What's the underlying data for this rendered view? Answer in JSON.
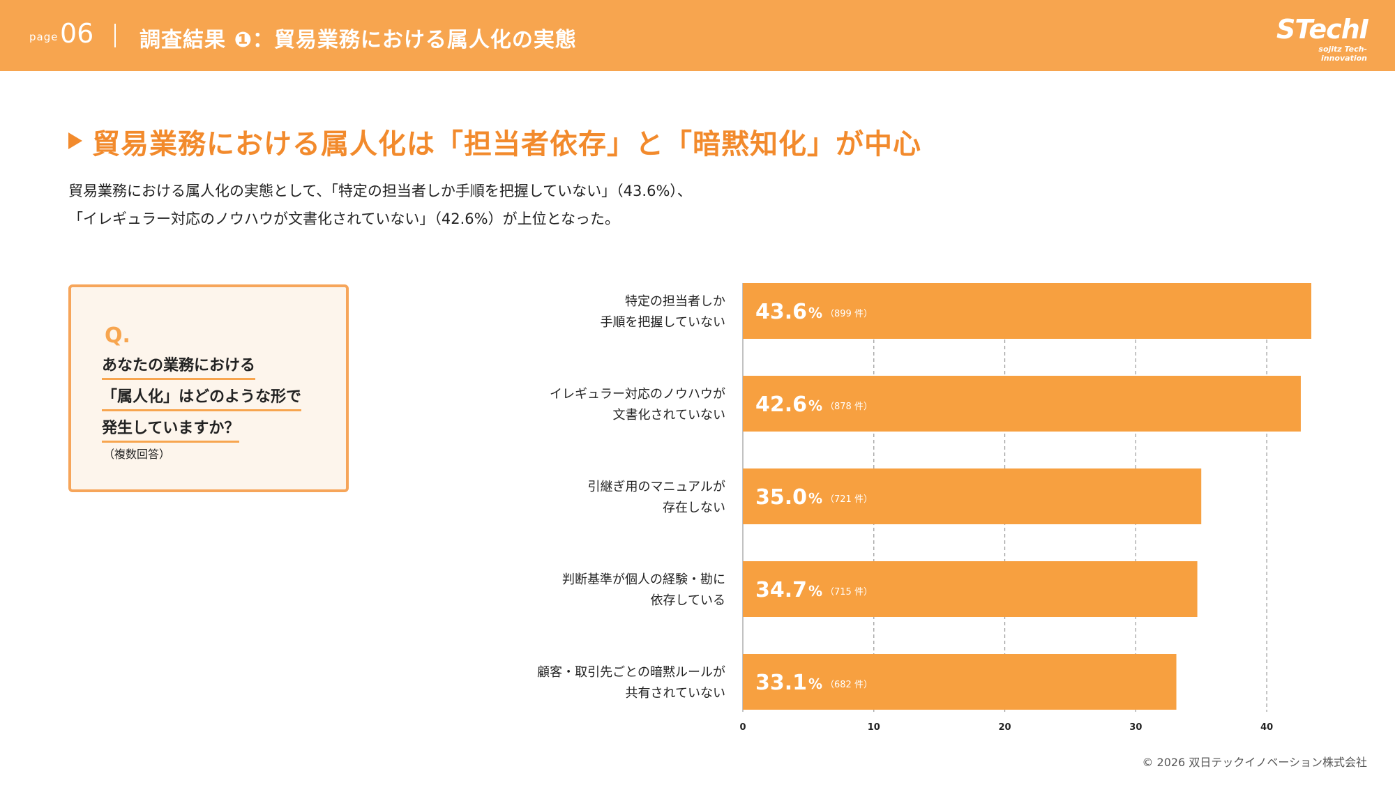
{
  "header": {
    "page_label": "page",
    "page_number": "06",
    "title": "調査結果 ❶：貿易業務における属人化の実態",
    "logo_main": "STechI",
    "logo_sub": "sojitz Tech-innovation",
    "background_color": "#f7a54f"
  },
  "headline": "貿易業務における属人化は「担当者依存」と「暗黙知化」が中心",
  "summary": {
    "line1": "貿易業務における属人化の実態として、「特定の担当者しか手順を把握していない」（43.6%）、",
    "line2": "「イレギュラー対応のノウハウが文書化されていない」（42.6%）が上位となった。"
  },
  "question": {
    "mark": "Q.",
    "line1": "あなたの業務における",
    "line2": "「属人化」はどのような形で",
    "line3": "発生していますか？",
    "note": "（複数回答）"
  },
  "chart_data": {
    "type": "bar",
    "orientation": "horizontal",
    "categories": [
      [
        "特定の担当者しか",
        "手順を把握していない"
      ],
      [
        "イレギュラー対応のノウハウが",
        "文書化されていない"
      ],
      [
        "引継ぎ用のマニュアルが",
        "存在しない"
      ],
      [
        "判断基準が個人の経験・勘に",
        "依存している"
      ],
      [
        "顧客・取引先ごとの暗黙ルールが",
        "共有されていない"
      ]
    ],
    "values": [
      43.6,
      42.6,
      35.0,
      34.7,
      33.1
    ],
    "value_labels": [
      "43.6",
      "42.6",
      "35.0",
      "34.7",
      "33.1"
    ],
    "percent_sign": "%",
    "counts": [
      "（899 件）",
      "（878 件）",
      "（721 件）",
      "（715 件）",
      "（682 件）"
    ],
    "xlim": [
      0,
      45
    ],
    "xticks": [
      0,
      10,
      20,
      30,
      40
    ],
    "grid": true,
    "bar_color": "#f7a040"
  },
  "footer": {
    "copyright": "© 2026 双日テックイノベーション株式会社"
  }
}
